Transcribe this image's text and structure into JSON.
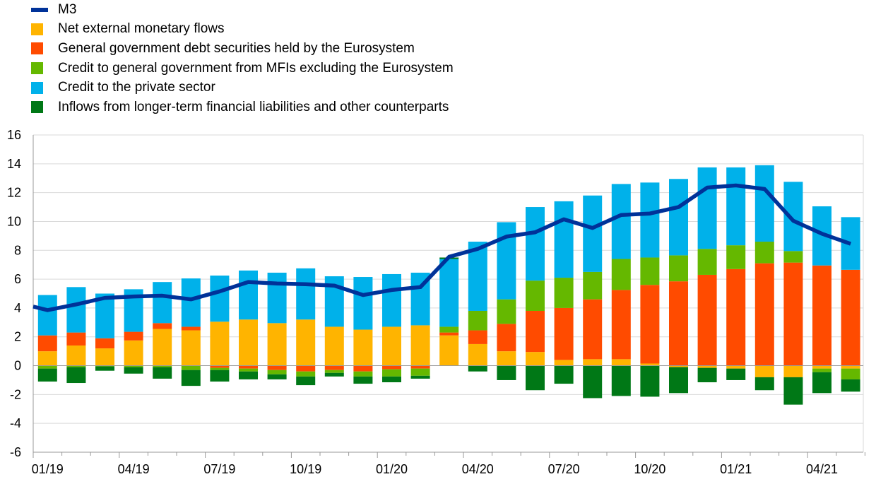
{
  "chart_data": {
    "type": "bar",
    "stacked": true,
    "title": "",
    "xlabel": "",
    "ylabel": "",
    "ylim": [
      -6,
      16
    ],
    "yticks": [
      -6,
      -4,
      -2,
      0,
      2,
      4,
      6,
      8,
      10,
      12,
      14,
      16
    ],
    "grid": true,
    "legend_position": "top-left",
    "categories": [
      "01/19",
      "02/19",
      "03/19",
      "04/19",
      "05/19",
      "06/19",
      "07/19",
      "08/19",
      "09/19",
      "10/19",
      "11/19",
      "12/19",
      "01/20",
      "02/20",
      "03/20",
      "04/20",
      "05/20",
      "06/20",
      "07/20",
      "08/20",
      "09/20",
      "10/20",
      "11/20",
      "12/20",
      "01/21",
      "02/21",
      "03/21",
      "04/21",
      "05/21"
    ],
    "xtick_labels": [
      {
        "index": 0,
        "label": "01/19"
      },
      {
        "index": 3,
        "label": "04/19"
      },
      {
        "index": 6,
        "label": "07/19"
      },
      {
        "index": 9,
        "label": "10/19"
      },
      {
        "index": 12,
        "label": "01/20"
      },
      {
        "index": 15,
        "label": "04/20"
      },
      {
        "index": 18,
        "label": "07/20"
      },
      {
        "index": 21,
        "label": "10/20"
      },
      {
        "index": 24,
        "label": "01/21"
      },
      {
        "index": 27,
        "label": "04/21"
      }
    ],
    "series": [
      {
        "name": "Net external monetary flows",
        "color": "#FFB400",
        "values": [
          1.0,
          1.4,
          1.2,
          1.75,
          2.55,
          2.45,
          3.05,
          3.2,
          2.95,
          3.2,
          2.7,
          2.5,
          2.7,
          2.8,
          2.1,
          1.5,
          1.0,
          0.95,
          0.4,
          0.45,
          0.45,
          0.15,
          -0.1,
          -0.15,
          -0.2,
          -0.8,
          -0.8,
          -0.2,
          -0.2
        ]
      },
      {
        "name": "General government debt securities held by the Eurosystem",
        "color": "#FF4B00",
        "values": [
          1.1,
          0.9,
          0.7,
          0.6,
          0.4,
          0.25,
          -0.15,
          -0.2,
          -0.3,
          -0.4,
          -0.3,
          -0.4,
          -0.25,
          -0.2,
          0.2,
          0.95,
          1.9,
          2.85,
          3.6,
          4.15,
          4.8,
          5.45,
          5.85,
          6.3,
          6.7,
          7.1,
          7.15,
          6.95,
          6.65
        ]
      },
      {
        "name": "Credit to general government from MFIs excluding the Eurosystem",
        "color": "#65B800",
        "values": [
          -0.2,
          -0.1,
          -0.05,
          -0.1,
          -0.1,
          -0.3,
          -0.15,
          -0.2,
          -0.3,
          -0.35,
          -0.2,
          -0.35,
          -0.5,
          -0.5,
          0.4,
          1.35,
          1.7,
          2.1,
          2.1,
          1.9,
          2.15,
          1.9,
          1.8,
          1.8,
          1.65,
          1.5,
          0.8,
          -0.25,
          -0.75
        ]
      },
      {
        "name": "Credit to the private sector",
        "color": "#00B1EA",
        "values": [
          2.8,
          3.15,
          3.1,
          2.95,
          2.85,
          3.35,
          3.2,
          3.4,
          3.5,
          3.55,
          3.5,
          3.65,
          3.65,
          3.65,
          4.7,
          4.8,
          5.35,
          5.1,
          5.3,
          5.3,
          5.2,
          5.2,
          5.3,
          5.65,
          5.4,
          5.3,
          4.8,
          4.1,
          3.65
        ]
      },
      {
        "name": "Inflows from longer-term financial liabilities and other counterparts",
        "color": "#007816",
        "values": [
          -0.9,
          -1.1,
          -0.3,
          -0.45,
          -0.8,
          -1.1,
          -0.8,
          -0.55,
          -0.35,
          -0.6,
          -0.25,
          -0.5,
          -0.4,
          -0.2,
          0.1,
          -0.4,
          -1.0,
          -1.7,
          -1.25,
          -2.25,
          -2.1,
          -2.15,
          -1.8,
          -1.0,
          -0.8,
          -0.9,
          -1.9,
          -1.45,
          -0.85
        ]
      }
    ],
    "line": {
      "name": "M3",
      "color": "#003299",
      "values": [
        4.1,
        3.85,
        4.25,
        4.7,
        4.8,
        4.85,
        4.6,
        5.15,
        5.8,
        5.7,
        5.65,
        5.55,
        4.9,
        5.25,
        5.45,
        7.55,
        8.1,
        8.95,
        9.25,
        10.15,
        9.55,
        10.45,
        10.55,
        11.0,
        12.35,
        12.5,
        12.25,
        10.05,
        9.15,
        8.45
      ],
      "x_positions": [
        -0.6,
        0,
        1,
        2,
        3,
        4,
        5,
        6,
        7,
        8,
        9,
        10,
        11,
        12,
        13,
        14,
        15,
        16,
        17,
        18,
        19,
        20,
        21,
        22,
        23,
        24,
        25,
        26,
        27,
        28
      ]
    }
  }
}
